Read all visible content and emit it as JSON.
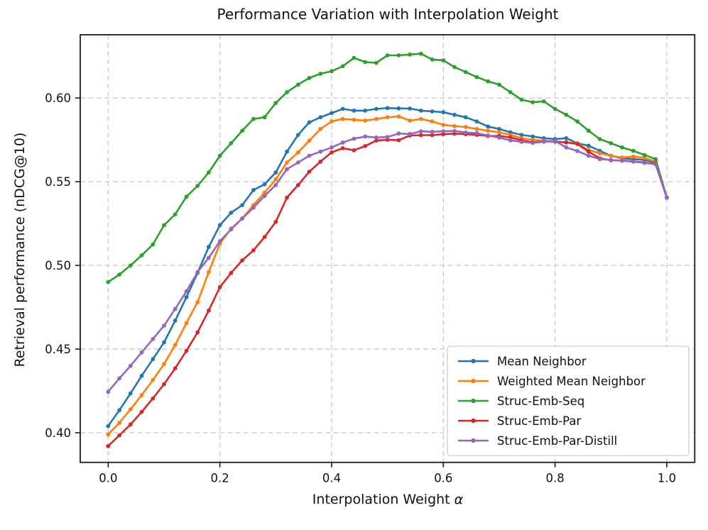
{
  "figure": {
    "title": "Performance Variation with Interpolation Weight",
    "xlabel_text": "Interpolation Weight ",
    "xlabel_symbol": "α",
    "ylabel": "Retrieval performance (nDCG@10)"
  },
  "chart_data": {
    "type": "line",
    "title": "Performance Variation with Interpolation Weight",
    "xlabel": "Interpolation Weight α",
    "ylabel": "Retrieval performance (nDCG@10)",
    "xlim": [
      -0.05,
      1.05
    ],
    "ylim": [
      0.3823,
      0.6378
    ],
    "x_tick_values": [
      0.0,
      0.2,
      0.4,
      0.6,
      0.8,
      1.0
    ],
    "x_tick_labels": [
      "0.0",
      "0.2",
      "0.4",
      "0.6",
      "0.8",
      "1.0"
    ],
    "y_tick_values": [
      0.4,
      0.45,
      0.5,
      0.55,
      0.6
    ],
    "y_tick_labels": [
      "0.40",
      "0.45",
      "0.50",
      "0.55",
      "0.60"
    ],
    "grid": "dashed",
    "legend_position": "lower right",
    "axis_color": "#1a1a1a",
    "grid_color": "#cccccc",
    "x": [
      0.0,
      0.02,
      0.04,
      0.06,
      0.08,
      0.1,
      0.12,
      0.14,
      0.16,
      0.18,
      0.2,
      0.22,
      0.24,
      0.26,
      0.28,
      0.3,
      0.32,
      0.34,
      0.36,
      0.38,
      0.4,
      0.42,
      0.44,
      0.46,
      0.48,
      0.5,
      0.52,
      0.54,
      0.56,
      0.58,
      0.6,
      0.62,
      0.64,
      0.66,
      0.68,
      0.7,
      0.72,
      0.74,
      0.76,
      0.78,
      0.8,
      0.82,
      0.84,
      0.86,
      0.88,
      0.9,
      0.92,
      0.94,
      0.96,
      0.98,
      1.0
    ],
    "series": [
      {
        "name": "Mean Neighbor",
        "color": "#1f77b4",
        "values": [
          0.404,
          0.4135,
          0.4235,
          0.434,
          0.444,
          0.454,
          0.467,
          0.481,
          0.4955,
          0.511,
          0.524,
          0.5315,
          0.536,
          0.545,
          0.5485,
          0.5555,
          0.568,
          0.578,
          0.5855,
          0.5885,
          0.591,
          0.5935,
          0.5925,
          0.5925,
          0.5935,
          0.594,
          0.5938,
          0.5937,
          0.5925,
          0.592,
          0.5915,
          0.59,
          0.5885,
          0.586,
          0.583,
          0.5815,
          0.5795,
          0.578,
          0.577,
          0.576,
          0.5755,
          0.576,
          0.573,
          0.5715,
          0.5685,
          0.5655,
          0.564,
          0.5635,
          0.563,
          0.5615,
          0.5405
        ]
      },
      {
        "name": "Weighted Mean Neighbor",
        "color": "#ff7f0e",
        "values": [
          0.399,
          0.406,
          0.414,
          0.4225,
          0.4315,
          0.441,
          0.4525,
          0.4655,
          0.478,
          0.496,
          0.513,
          0.522,
          0.528,
          0.536,
          0.5435,
          0.5515,
          0.5615,
          0.5675,
          0.5745,
          0.5815,
          0.586,
          0.5875,
          0.587,
          0.5865,
          0.5875,
          0.5885,
          0.589,
          0.5865,
          0.5875,
          0.586,
          0.584,
          0.5832,
          0.5827,
          0.5815,
          0.5805,
          0.5795,
          0.578,
          0.576,
          0.575,
          0.5745,
          0.574,
          0.5735,
          0.5728,
          0.569,
          0.567,
          0.5655,
          0.5645,
          0.565,
          0.5642,
          0.562,
          0.5405
        ]
      },
      {
        "name": "Struc-Emb-Seq",
        "color": "#2ca02c",
        "values": [
          0.49,
          0.4945,
          0.5,
          0.506,
          0.5125,
          0.524,
          0.5305,
          0.541,
          0.5475,
          0.5555,
          0.5655,
          0.573,
          0.5805,
          0.5875,
          0.5885,
          0.597,
          0.6035,
          0.608,
          0.612,
          0.6145,
          0.616,
          0.619,
          0.624,
          0.6215,
          0.621,
          0.6255,
          0.6255,
          0.626,
          0.6265,
          0.623,
          0.6225,
          0.6185,
          0.6155,
          0.6125,
          0.61,
          0.608,
          0.6035,
          0.599,
          0.5975,
          0.598,
          0.5935,
          0.59,
          0.586,
          0.5805,
          0.5755,
          0.573,
          0.5705,
          0.5685,
          0.566,
          0.5635,
          0.5405
        ]
      },
      {
        "name": "Struc-Emb-Par",
        "color": "#d62728",
        "values": [
          0.392,
          0.3985,
          0.405,
          0.4125,
          0.4205,
          0.429,
          0.4385,
          0.449,
          0.46,
          0.473,
          0.487,
          0.4955,
          0.503,
          0.509,
          0.517,
          0.526,
          0.5405,
          0.548,
          0.556,
          0.562,
          0.5675,
          0.57,
          0.5688,
          0.5713,
          0.5746,
          0.5751,
          0.5748,
          0.5776,
          0.5778,
          0.5778,
          0.5784,
          0.5787,
          0.5784,
          0.578,
          0.5773,
          0.5773,
          0.5765,
          0.5747,
          0.5735,
          0.574,
          0.574,
          0.5735,
          0.5725,
          0.568,
          0.564,
          0.5628,
          0.5627,
          0.5621,
          0.5614,
          0.5607,
          0.5405
        ]
      },
      {
        "name": "Struc-Emb-Par-Distill",
        "color": "#9467bd",
        "values": [
          0.4245,
          0.4325,
          0.44,
          0.448,
          0.456,
          0.464,
          0.474,
          0.4845,
          0.496,
          0.5045,
          0.5145,
          0.5215,
          0.528,
          0.5345,
          0.5415,
          0.548,
          0.5575,
          0.5615,
          0.5655,
          0.568,
          0.5705,
          0.5734,
          0.5757,
          0.577,
          0.5764,
          0.5767,
          0.5788,
          0.5785,
          0.5801,
          0.5798,
          0.5801,
          0.5803,
          0.5794,
          0.579,
          0.5776,
          0.5763,
          0.5747,
          0.5738,
          0.5732,
          0.5739,
          0.5744,
          0.5705,
          0.5683,
          0.5655,
          0.5635,
          0.563,
          0.5625,
          0.562,
          0.5613,
          0.5604,
          0.5405
        ]
      }
    ]
  }
}
